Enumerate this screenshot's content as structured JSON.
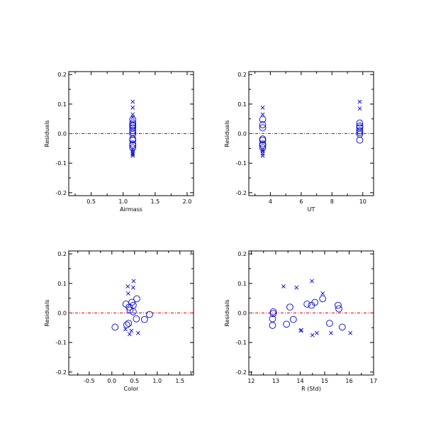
{
  "colors": {
    "points": "#0000cc",
    "zero_line": "#e00000",
    "axes": "#000000"
  },
  "chart_data": [
    {
      "type": "scatter",
      "xlabel": "Airmass",
      "ylabel": "Residuals",
      "xlim": [
        0.15,
        2.1
      ],
      "ylim": [
        -0.21,
        0.21
      ],
      "xticks": [
        0.5,
        1.0,
        1.5,
        2.0
      ],
      "xtick_labels": [
        "0.5",
        "1.0",
        "1.5",
        "2.0"
      ],
      "yticks": [
        -0.2,
        -0.1,
        0.0,
        0.1,
        0.2
      ],
      "ytick_labels": [
        "-0.2",
        "-0.1",
        "0.0",
        "0.1",
        "0.2"
      ],
      "zero_line": 0.0,
      "series": [
        {
          "marker": "x",
          "points": [
            [
              1.15,
              0.108
            ],
            [
              1.15,
              0.088
            ],
            [
              1.15,
              0.065
            ],
            [
              1.15,
              0.055
            ],
            [
              1.15,
              -0.055
            ],
            [
              1.15,
              -0.06
            ],
            [
              1.15,
              -0.066
            ],
            [
              1.15,
              -0.07
            ],
            [
              1.15,
              -0.075
            ]
          ]
        },
        {
          "marker": "circle",
          "points": [
            [
              1.15,
              0.048
            ],
            [
              1.15,
              0.036
            ],
            [
              1.15,
              0.03
            ],
            [
              1.15,
              0.026
            ],
            [
              1.15,
              0.02
            ],
            [
              1.15,
              0.01
            ],
            [
              1.15,
              0.004
            ],
            [
              1.15,
              -0.002
            ],
            [
              1.15,
              -0.018
            ],
            [
              1.15,
              -0.022
            ],
            [
              1.15,
              -0.035
            ],
            [
              1.15,
              -0.04
            ],
            [
              1.15,
              -0.048
            ]
          ]
        }
      ]
    },
    {
      "type": "scatter",
      "xlabel": "UT",
      "ylabel": "Residuals",
      "xlim": [
        2.6,
        10.7
      ],
      "ylim": [
        -0.21,
        0.21
      ],
      "xticks": [
        4,
        6,
        8,
        10
      ],
      "xtick_labels": [
        "4",
        "6",
        "8",
        "10"
      ],
      "yticks": [
        -0.2,
        -0.1,
        0.0,
        0.1,
        0.2
      ],
      "ytick_labels": [
        "-0.2",
        "-0.1",
        "0.0",
        "0.1",
        "0.2"
      ],
      "zero_line": 0.0,
      "series": [
        {
          "marker": "x",
          "points": [
            [
              3.5,
              0.088
            ],
            [
              3.5,
              0.065
            ],
            [
              3.5,
              -0.055
            ],
            [
              3.5,
              -0.06
            ],
            [
              3.5,
              -0.068
            ],
            [
              3.5,
              -0.075
            ],
            [
              9.8,
              0.108
            ],
            [
              9.8,
              0.085
            ]
          ]
        },
        {
          "marker": "circle",
          "points": [
            [
              3.5,
              0.048
            ],
            [
              3.5,
              0.03
            ],
            [
              3.5,
              0.02
            ],
            [
              3.5,
              -0.018
            ],
            [
              3.5,
              -0.022
            ],
            [
              3.5,
              -0.035
            ],
            [
              3.5,
              -0.04
            ],
            [
              3.5,
              -0.048
            ],
            [
              9.8,
              0.036
            ],
            [
              9.8,
              0.026
            ],
            [
              9.8,
              0.02
            ],
            [
              9.8,
              0.01
            ],
            [
              9.8,
              0.004
            ],
            [
              9.8,
              -0.002
            ],
            [
              9.8,
              -0.022
            ]
          ]
        }
      ]
    },
    {
      "type": "scatter",
      "xlabel": "Color",
      "ylabel": "Residuals",
      "xlim": [
        -0.95,
        1.8
      ],
      "ylim": [
        -0.21,
        0.21
      ],
      "xticks": [
        -0.5,
        0.0,
        0.5,
        1.0,
        1.5
      ],
      "xtick_labels": [
        "-0.5",
        "0.0",
        "0.5",
        "1.0",
        "1.5"
      ],
      "yticks": [
        -0.2,
        -0.1,
        0.0,
        0.1,
        0.2
      ],
      "ytick_labels": [
        "-0.2",
        "-0.1",
        "0.0",
        "0.1",
        "0.2"
      ],
      "zero_line": 0.0,
      "series": [
        {
          "marker": "x",
          "points": [
            [
              0.48,
              0.108
            ],
            [
              0.35,
              0.09
            ],
            [
              0.47,
              0.086
            ],
            [
              0.36,
              0.066
            ],
            [
              0.43,
              -0.06
            ],
            [
              0.58,
              -0.068
            ],
            [
              0.39,
              -0.072
            ],
            [
              0.3,
              -0.055
            ]
          ]
        },
        {
          "marker": "circle",
          "points": [
            [
              0.55,
              0.048
            ],
            [
              0.44,
              0.036
            ],
            [
              0.31,
              0.03
            ],
            [
              0.47,
              0.026
            ],
            [
              0.38,
              0.02
            ],
            [
              0.4,
              0.01
            ],
            [
              0.47,
              0.004
            ],
            [
              0.83,
              -0.005
            ],
            [
              0.54,
              -0.02
            ],
            [
              0.72,
              -0.022
            ],
            [
              0.37,
              -0.035
            ],
            [
              0.33,
              -0.04
            ],
            [
              0.07,
              -0.048
            ]
          ]
        }
      ]
    },
    {
      "type": "scatter",
      "xlabel": "R (Std)",
      "ylabel": "Residuals",
      "xlim": [
        11.9,
        17.0
      ],
      "ylim": [
        -0.21,
        0.21
      ],
      "xticks": [
        12,
        13,
        14,
        15,
        16,
        17
      ],
      "xtick_labels": [
        "12",
        "13",
        "14",
        "15",
        "16",
        "17"
      ],
      "yticks": [
        -0.2,
        -0.1,
        0.0,
        0.1,
        0.2
      ],
      "ytick_labels": [
        "-0.2",
        "-0.1",
        "0.0",
        "0.1",
        "0.2"
      ],
      "zero_line": 0.0,
      "series": [
        {
          "marker": "x",
          "points": [
            [
              14.48,
              0.108
            ],
            [
              13.32,
              0.09
            ],
            [
              13.85,
              0.086
            ],
            [
              14.92,
              0.066
            ],
            [
              14.05,
              -0.058
            ],
            [
              14.02,
              -0.06
            ],
            [
              15.26,
              -0.068
            ],
            [
              14.68,
              -0.068
            ],
            [
              16.05,
              -0.068
            ],
            [
              14.5,
              -0.075
            ]
          ]
        },
        {
          "marker": "circle",
          "points": [
            [
              14.92,
              0.048
            ],
            [
              14.6,
              0.036
            ],
            [
              14.28,
              0.03
            ],
            [
              14.46,
              0.026
            ],
            [
              15.55,
              0.026
            ],
            [
              13.58,
              0.02
            ],
            [
              15.58,
              0.014
            ],
            [
              12.9,
              0.004
            ],
            [
              12.9,
              -0.002
            ],
            [
              12.87,
              -0.02
            ],
            [
              13.72,
              -0.022
            ],
            [
              15.2,
              -0.035
            ],
            [
              13.44,
              -0.038
            ],
            [
              12.87,
              -0.042
            ],
            [
              15.72,
              -0.048
            ]
          ]
        }
      ]
    }
  ]
}
